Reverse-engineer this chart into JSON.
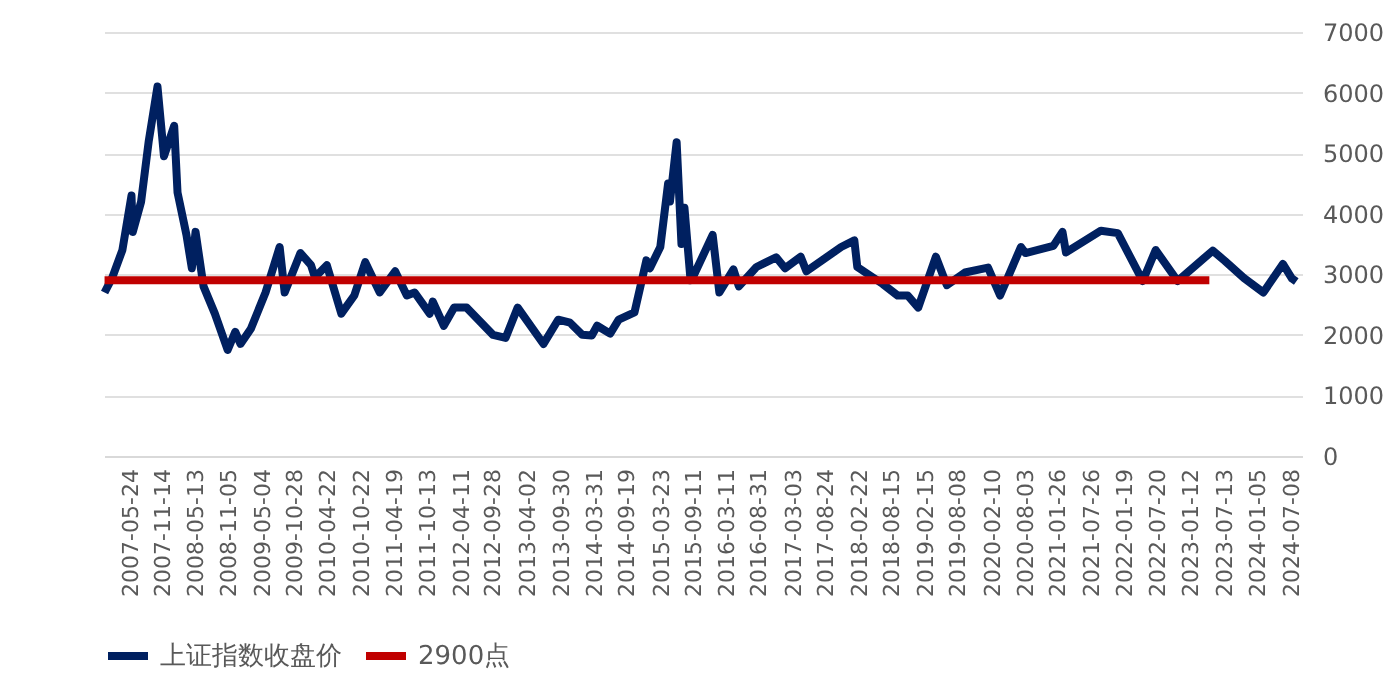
{
  "chart_data": {
    "type": "line",
    "xlim": [
      "2007-01-01",
      "2024-08-31"
    ],
    "xticks": [
      "2007-05-24",
      "2007-11-14",
      "2008-05-13",
      "2008-11-05",
      "2009-05-04",
      "2009-10-28",
      "2010-04-22",
      "2010-10-22",
      "2011-04-19",
      "2011-10-13",
      "2012-04-11",
      "2012-09-28",
      "2013-04-02",
      "2013-09-30",
      "2014-03-31",
      "2014-09-19",
      "2015-03-23",
      "2015-09-11",
      "2016-03-11",
      "2016-08-31",
      "2017-03-03",
      "2017-08-24",
      "2018-02-22",
      "2018-08-15",
      "2019-02-15",
      "2019-08-08",
      "2020-02-10",
      "2020-08-03",
      "2021-01-26",
      "2021-07-26",
      "2022-01-19",
      "2022-07-20",
      "2023-01-12",
      "2023-07-13",
      "2024-01-05",
      "2024-07-08"
    ],
    "ylim": [
      0,
      7000
    ],
    "yticks": [
      0,
      1000,
      2000,
      3000,
      4000,
      5000,
      6000,
      7000
    ],
    "grid": "y",
    "legend": "bottom",
    "marker": "none",
    "line_style": "solid",
    "series": [
      {
        "name": "上证指数收盘价",
        "color": "#002060",
        "x": [
          "2007-01-04",
          "2007-02-15",
          "2007-04-10",
          "2007-05-29",
          "2007-06-05",
          "2007-07-20",
          "2007-08-30",
          "2007-10-16",
          "2007-11-20",
          "2008-01-14",
          "2008-02-01",
          "2008-03-20",
          "2008-04-18",
          "2008-05-08",
          "2008-06-20",
          "2008-08-20",
          "2008-10-28",
          "2008-12-08",
          "2009-01-05",
          "2009-03-02",
          "2009-05-20",
          "2009-08-04",
          "2009-08-31",
          "2009-11-24",
          "2010-01-20",
          "2010-02-10",
          "2010-04-15",
          "2010-07-02",
          "2010-09-10",
          "2010-11-08",
          "2011-01-25",
          "2011-04-18",
          "2011-06-20",
          "2011-08-01",
          "2011-10-21",
          "2011-11-07",
          "2012-01-05",
          "2012-03-01",
          "2012-05-07",
          "2012-09-26",
          "2012-12-03",
          "2013-02-06",
          "2013-06-25",
          "2013-09-12",
          "2013-11-15",
          "2014-01-20",
          "2014-03-12",
          "2014-04-10",
          "2014-06-19",
          "2014-08-04",
          "2014-10-28",
          "2014-12-31",
          "2015-01-19",
          "2015-03-16",
          "2015-04-27",
          "2015-05-07",
          "2015-06-12",
          "2015-07-08",
          "2015-07-24",
          "2015-08-26",
          "2015-09-15",
          "2015-12-23",
          "2016-01-28",
          "2016-04-13",
          "2016-05-12",
          "2016-08-15",
          "2016-11-29",
          "2017-01-16",
          "2017-04-10",
          "2017-05-11",
          "2017-11-14",
          "2018-01-24",
          "2018-02-09",
          "2018-06-26",
          "2018-09-14",
          "2018-11-07",
          "2019-01-03",
          "2019-04-08",
          "2019-06-06",
          "2019-09-12",
          "2020-01-14",
          "2020-03-19",
          "2020-07-09",
          "2020-08-03",
          "2020-12-31",
          "2021-02-18",
          "2021-03-09",
          "2021-09-13",
          "2021-12-13",
          "2022-04-26",
          "2022-07-05",
          "2022-10-31",
          "2023-05-08",
          "2023-07-13",
          "2023-10-23",
          "2024-02-05",
          "2024-05-20",
          "2024-07-08",
          "2024-07-31"
        ],
        "values": [
          2700,
          2950,
          3400,
          4300,
          3700,
          4200,
          5200,
          6100,
          4950,
          5450,
          4350,
          3650,
          3100,
          3700,
          2800,
          2350,
          1750,
          2050,
          1850,
          2100,
          2700,
          3450,
          2700,
          3350,
          3150,
          2950,
          3150,
          2350,
          2650,
          3200,
          2700,
          3050,
          2650,
          2700,
          2350,
          2550,
          2150,
          2450,
          2450,
          2000,
          1950,
          2450,
          1850,
          2250,
          2200,
          2000,
          1990,
          2150,
          2020,
          2250,
          2370,
          3230,
          3100,
          3450,
          4500,
          4200,
          5180,
          3500,
          4100,
          2900,
          3000,
          3650,
          2700,
          3080,
          2800,
          3120,
          3280,
          3100,
          3290,
          3050,
          3450,
          3560,
          3120,
          2840,
          2650,
          2650,
          2450,
          3290,
          2820,
          3030,
          3110,
          2650,
          3450,
          3350,
          3470,
          3700,
          3360,
          3720,
          3680,
          2890,
          3400,
          2890,
          3390,
          3220,
          2940,
          2700,
          3170,
          2930,
          2880
        ]
      },
      {
        "name": "2900点",
        "color": "#c00000",
        "x": [
          "2007-01-04",
          "2023-04-20"
        ],
        "values": [
          2900,
          2900
        ]
      }
    ]
  }
}
